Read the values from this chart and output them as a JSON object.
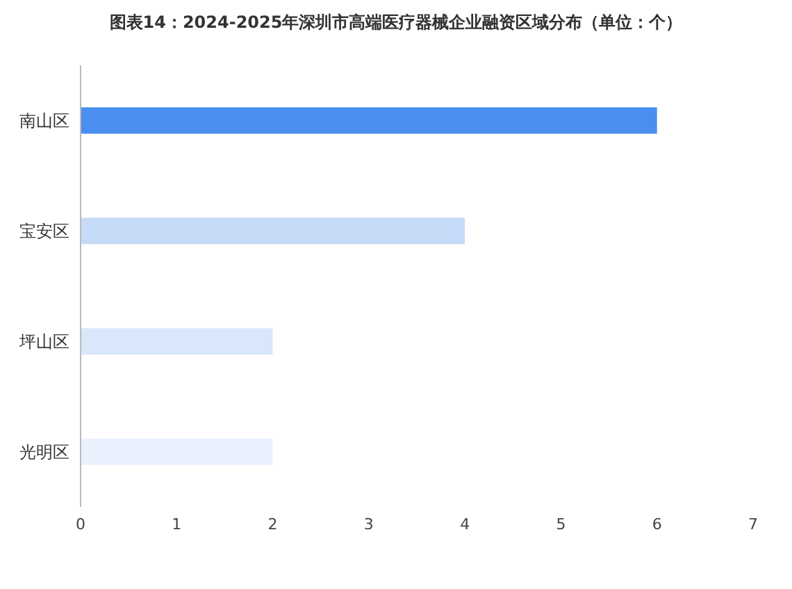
{
  "chart_data": {
    "type": "bar",
    "orientation": "horizontal",
    "title": "图表14：2024-2025年深圳市高端医疗器械企业融资区域分布（单位：个）",
    "categories": [
      "南山区",
      "宝安区",
      "坪山区",
      "光明区"
    ],
    "values": [
      6,
      4,
      2,
      2
    ],
    "colors": [
      "#4a8ff0",
      "#c6dbf8",
      "#d9e7fb",
      "#e8f1fd"
    ],
    "xlim": [
      0,
      7
    ],
    "xticks": [
      0,
      1,
      2,
      3,
      4,
      5,
      6,
      7
    ],
    "grid": false
  }
}
